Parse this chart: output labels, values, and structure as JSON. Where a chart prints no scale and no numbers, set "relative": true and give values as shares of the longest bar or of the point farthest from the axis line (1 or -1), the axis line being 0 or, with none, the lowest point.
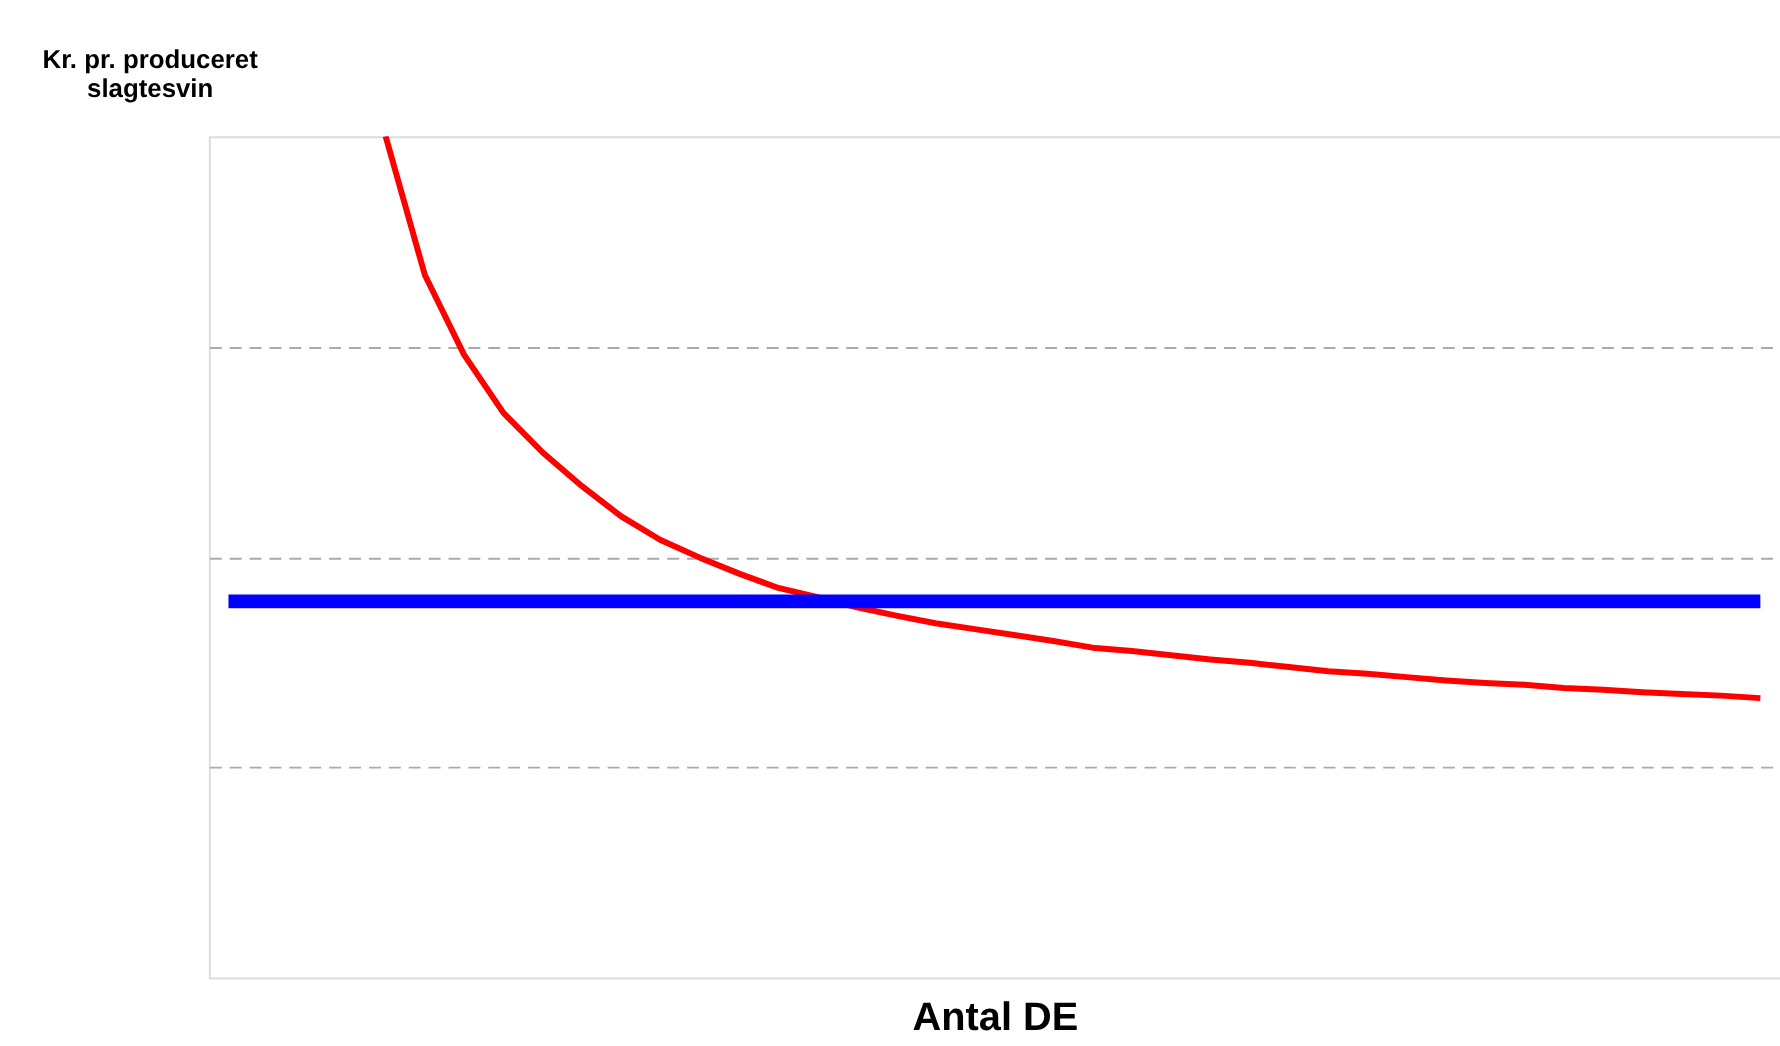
{
  "chart_data": {
    "type": "line",
    "relative": true,
    "xlabel": "Antal DE",
    "ylabel": "Kr. pr. produceret\nslagtesvin",
    "grid": "y",
    "categories": [
      null,
      null,
      null,
      null,
      null,
      null,
      null,
      null,
      null,
      null,
      null,
      null,
      null,
      null,
      null,
      null,
      null,
      null,
      null,
      null,
      null,
      null,
      null,
      null,
      null,
      null,
      null,
      null,
      null,
      null,
      null,
      null,
      null,
      null,
      null,
      null,
      null,
      null,
      null,
      null
    ],
    "series": [
      {
        "color": "#ff0000",
        "values": [
          null,
          null,
          null,
          null,
          1.0,
          0.835,
          0.74,
          0.671,
          0.624,
          0.584,
          0.548,
          0.52,
          0.499,
          0.48,
          0.463,
          0.452,
          0.44,
          0.43,
          0.421,
          0.414,
          0.407,
          0.4,
          0.392,
          0.388,
          0.383,
          0.378,
          0.374,
          0.369,
          0.364,
          0.361,
          0.357,
          0.353,
          0.35,
          0.348,
          0.344,
          0.342,
          0.339,
          0.337,
          0.335,
          0.332
        ]
      },
      {
        "color": "#0000ff",
        "values": [
          0.447,
          0.447,
          0.447,
          0.447,
          0.447,
          0.447,
          0.447,
          0.447,
          0.447,
          0.447,
          0.447,
          0.447,
          0.447,
          0.447,
          0.447,
          0.447,
          0.447,
          0.447,
          0.447,
          0.447,
          0.447,
          0.447,
          0.447,
          0.447,
          0.447,
          0.447,
          0.447,
          0.447,
          0.447,
          0.447,
          0.447,
          0.447,
          0.447,
          0.447,
          0.447,
          0.447,
          0.447,
          0.447,
          0.447,
          0.447
        ]
      }
    ]
  }
}
